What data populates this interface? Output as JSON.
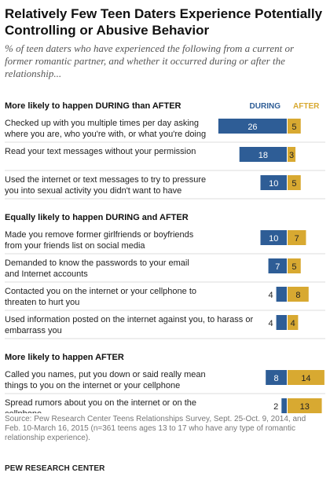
{
  "title": "Relatively Few Teen Daters Experience Potentially Controlling or Abusive Behavior",
  "subtitle": "% of teen daters who have experienced the following from a current or former romantic partner, and whether it occurred during or after the relationship...",
  "source": "Source: Pew Research Center Teens Relationships Survey, Sept. 25-Oct. 9, 2014, and Feb. 10-March 16, 2015 (n=361 teens ages 13 to 17 who have any type of romantic relationship experience).",
  "brand": "PEW RESEARCH CENTER",
  "colors": {
    "during": "#2e5d96",
    "after": "#d8a931",
    "divider": "#dddddd"
  },
  "chart_data": {
    "type": "bar",
    "legend": [
      "DURING",
      "AFTER"
    ],
    "groups": [
      {
        "heading": "More likely to happen DURING than AFTER",
        "items": [
          {
            "label": [
              "Checked up with you multiple times per day asking",
              "where you are, who you're with, or what you're doing"
            ],
            "during": 26,
            "after": 5
          },
          {
            "label": [
              "Read your text messages without your permission"
            ],
            "during": 18,
            "after": 3
          },
          {
            "label": [
              "Used the internet or text messages to try to pressure",
              "you into sexual activity you didn't want to have"
            ],
            "during": 10,
            "after": 5
          }
        ]
      },
      {
        "heading": "Equally likely to happen DURING and AFTER",
        "items": [
          {
            "label": [
              "Made you remove former girlfriends or boyfriends",
              "from your friends list on social media"
            ],
            "during": 10,
            "after": 7
          },
          {
            "label": [
              "Demanded to know the passwords to your email",
              "and Internet accounts"
            ],
            "during": 7,
            "after": 5
          },
          {
            "label": [
              "Contacted you on the internet or your cellphone to",
              "threaten to hurt you"
            ],
            "during": 4,
            "after": 8
          },
          {
            "label": [
              "Used information posted on the internet against you, to harass or",
              "embarrass you"
            ],
            "during": 4,
            "after": 4
          }
        ]
      },
      {
        "heading": "More likely to happen AFTER",
        "items": [
          {
            "label": [
              "Called you names, put you down or said really mean",
              "things to you on the internet or your cellphone"
            ],
            "during": 8,
            "after": 14
          },
          {
            "label": [
              "Spread rumors about you on the internet or on the",
              "cellphone"
            ],
            "during": 2,
            "after": 13
          }
        ]
      }
    ]
  }
}
